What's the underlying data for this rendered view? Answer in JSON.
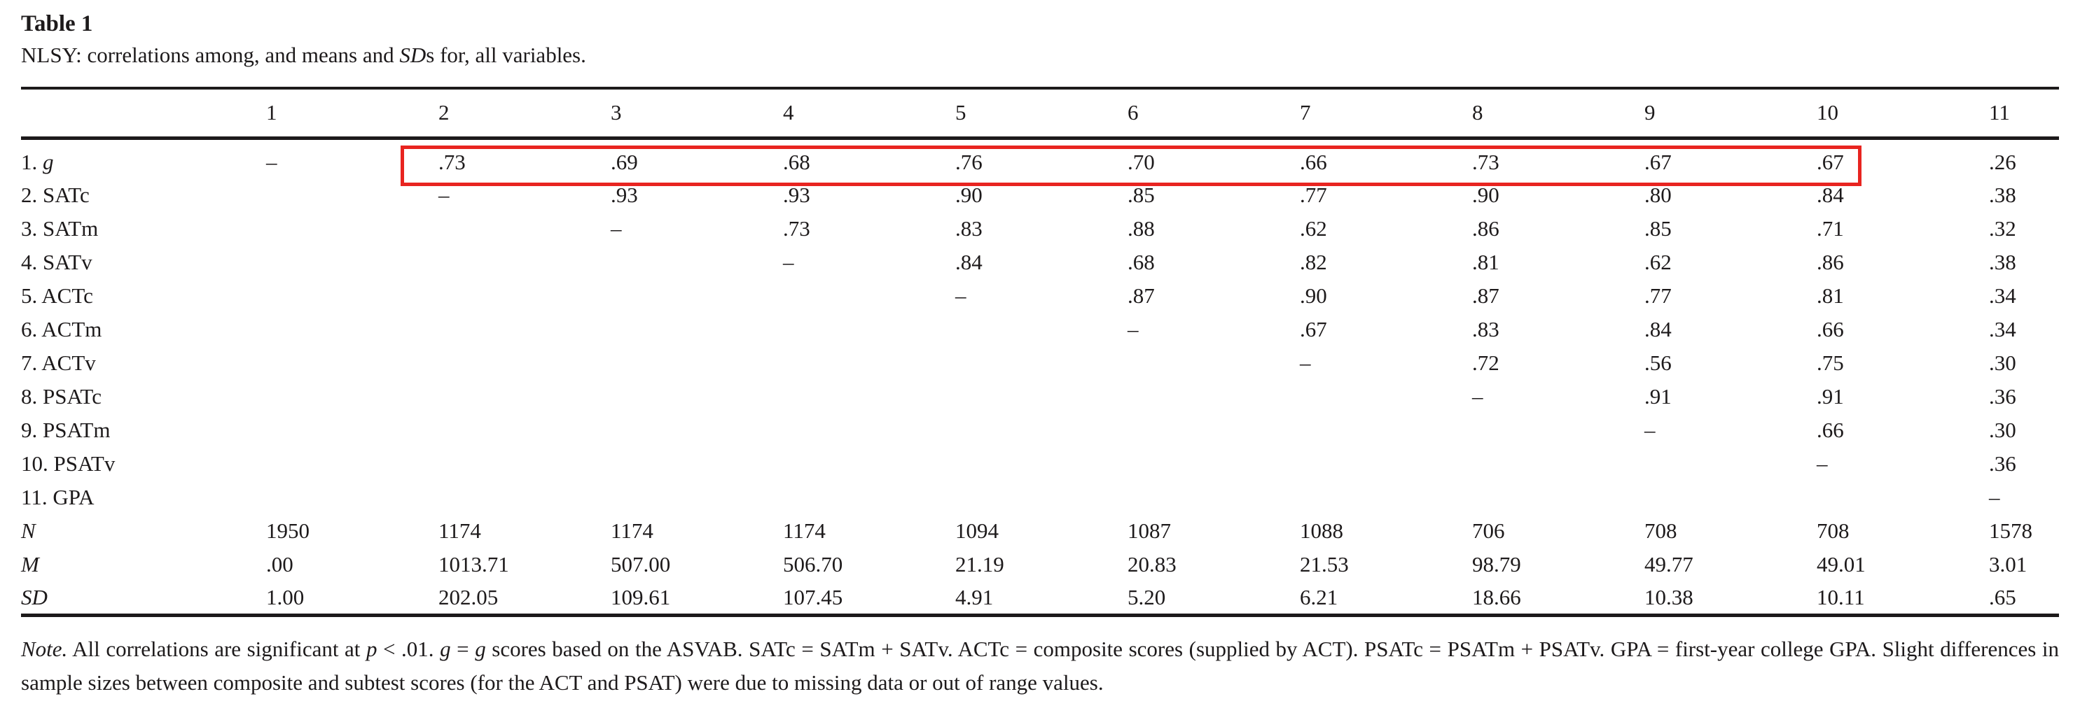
{
  "page": {
    "background": "#ffffff",
    "text_color": "#1d1a1b"
  },
  "table": {
    "title": "Table 1",
    "subtitle_segments": [
      {
        "t": "NLSY: correlations among, and means and "
      },
      {
        "t": "SD",
        "i": 1
      },
      {
        "t": "s for, all variables."
      }
    ],
    "column_headers": [
      "",
      "1",
      "2",
      "3",
      "4",
      "5",
      "6",
      "7",
      "8",
      "9",
      "10",
      "11"
    ],
    "rows": [
      {
        "label_segments": [
          {
            "t": "1. "
          },
          {
            "t": "g",
            "i": 1
          }
        ],
        "cells": [
          "–",
          ".73",
          ".69",
          ".68",
          ".76",
          ".70",
          ".66",
          ".73",
          ".67",
          ".67",
          ".26"
        ]
      },
      {
        "label_segments": [
          {
            "t": "2. SATc"
          }
        ],
        "cells": [
          "",
          "–",
          ".93",
          ".93",
          ".90",
          ".85",
          ".77",
          ".90",
          ".80",
          ".84",
          ".38"
        ]
      },
      {
        "label_segments": [
          {
            "t": "3. SATm"
          }
        ],
        "cells": [
          "",
          "",
          "–",
          ".73",
          ".83",
          ".88",
          ".62",
          ".86",
          ".85",
          ".71",
          ".32"
        ]
      },
      {
        "label_segments": [
          {
            "t": "4. SATv"
          }
        ],
        "cells": [
          "",
          "",
          "",
          "–",
          ".84",
          ".68",
          ".82",
          ".81",
          ".62",
          ".86",
          ".38"
        ]
      },
      {
        "label_segments": [
          {
            "t": "5. ACTc"
          }
        ],
        "cells": [
          "",
          "",
          "",
          "",
          "–",
          ".87",
          ".90",
          ".87",
          ".77",
          ".81",
          ".34"
        ]
      },
      {
        "label_segments": [
          {
            "t": "6. ACTm"
          }
        ],
        "cells": [
          "",
          "",
          "",
          "",
          "",
          "–",
          ".67",
          ".83",
          ".84",
          ".66",
          ".34"
        ]
      },
      {
        "label_segments": [
          {
            "t": "7. ACTv"
          }
        ],
        "cells": [
          "",
          "",
          "",
          "",
          "",
          "",
          "–",
          ".72",
          ".56",
          ".75",
          ".30"
        ]
      },
      {
        "label_segments": [
          {
            "t": "8. PSATc"
          }
        ],
        "cells": [
          "",
          "",
          "",
          "",
          "",
          "",
          "",
          "–",
          ".91",
          ".91",
          ".36"
        ]
      },
      {
        "label_segments": [
          {
            "t": "9. PSATm"
          }
        ],
        "cells": [
          "",
          "",
          "",
          "",
          "",
          "",
          "",
          "",
          "–",
          ".66",
          ".30"
        ]
      },
      {
        "label_segments": [
          {
            "t": "10. PSATv"
          }
        ],
        "cells": [
          "",
          "",
          "",
          "",
          "",
          "",
          "",
          "",
          "",
          "–",
          ".36"
        ]
      },
      {
        "label_segments": [
          {
            "t": "11. GPA"
          }
        ],
        "cells": [
          "",
          "",
          "",
          "",
          "",
          "",
          "",
          "",
          "",
          "",
          "–"
        ]
      },
      {
        "label_segments": [
          {
            "t": "N",
            "i": 1
          }
        ],
        "cells": [
          "1950",
          "1174",
          "1174",
          "1174",
          "1094",
          "1087",
          "1088",
          "706",
          "708",
          "708",
          "1578"
        ]
      },
      {
        "label_segments": [
          {
            "t": "M",
            "i": 1
          }
        ],
        "cells": [
          ".00",
          "1013.71",
          "507.00",
          "506.70",
          "21.19",
          "20.83",
          "21.53",
          "98.79",
          "49.77",
          "49.01",
          "3.01"
        ]
      },
      {
        "label_segments": [
          {
            "t": "SD",
            "i": 1
          }
        ],
        "cells": [
          "1.00",
          "202.05",
          "109.61",
          "107.45",
          "4.91",
          "5.20",
          "6.21",
          "18.66",
          "10.38",
          "10.11",
          ".65"
        ]
      }
    ],
    "note_segments": [
      {
        "t": "Note.",
        "i": 1
      },
      {
        "t": " All correlations are significant at "
      },
      {
        "t": "p",
        "i": 1
      },
      {
        "t": " < .01. "
      },
      {
        "t": "g",
        "i": 1
      },
      {
        "t": " = "
      },
      {
        "t": "g",
        "i": 1
      },
      {
        "t": " scores based on the ASVAB. SATc = SATm + SATv. ACTc = composite scores (supplied by ACT). PSATc = PSATm + PSATv. GPA = first-year college GPA. Slight differences in sample sizes between composite and subtest scores (for the ACT and PSAT) were due to missing data or out of range values."
      }
    ]
  },
  "annotation": {
    "type": "highlight-box",
    "color": "#e82420",
    "row": "1. g",
    "columns": "2–10",
    "values_highlighted": [
      ".73",
      ".69",
      ".68",
      ".76",
      ".70",
      ".66",
      ".73",
      ".67",
      ".67"
    ]
  }
}
